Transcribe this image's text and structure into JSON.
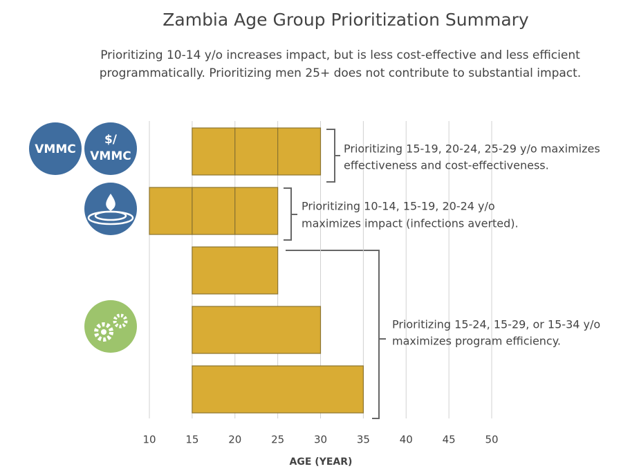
{
  "chart_data": {
    "type": "range-bar",
    "title": "Zambia Age Group Prioritization Summary",
    "subtitle": [
      "Prioritizing 10-14 y/o increases impact, but is less cost-effective and less efficient",
      "programmatically. Prioritizing men 25+ does not contribute to substantial impact."
    ],
    "x_label": "AGE (YEAR)",
    "xlim": [
      10,
      50
    ],
    "xticks": [
      10,
      15,
      20,
      25,
      30,
      35,
      40,
      45,
      50
    ],
    "grid": true,
    "color": "#d9ac34",
    "bars": [
      {
        "edges": [
          15,
          20,
          25,
          30
        ]
      },
      {
        "edges": [
          10,
          15,
          20,
          25
        ]
      },
      {
        "edges": [
          15,
          25
        ]
      },
      {
        "edges": [
          15,
          30
        ]
      },
      {
        "edges": [
          15,
          35
        ]
      }
    ],
    "icons": {
      "vmmc": "VMMC",
      "cost": [
        "$/",
        "VMMC"
      ]
    },
    "annotations": [
      [
        "Prioritizing 15-19, 20-24, 25-29 y/o maximizes",
        "effectiveness and cost-effectiveness."
      ],
      [
        "Prioritizing 10-14, 15-19, 20-24 y/o",
        "maximizes impact (infections averted)."
      ],
      [
        "Prioritizing 15-24, 15-29, or 15-34 y/o",
        "maximizes program efficiency."
      ]
    ]
  }
}
